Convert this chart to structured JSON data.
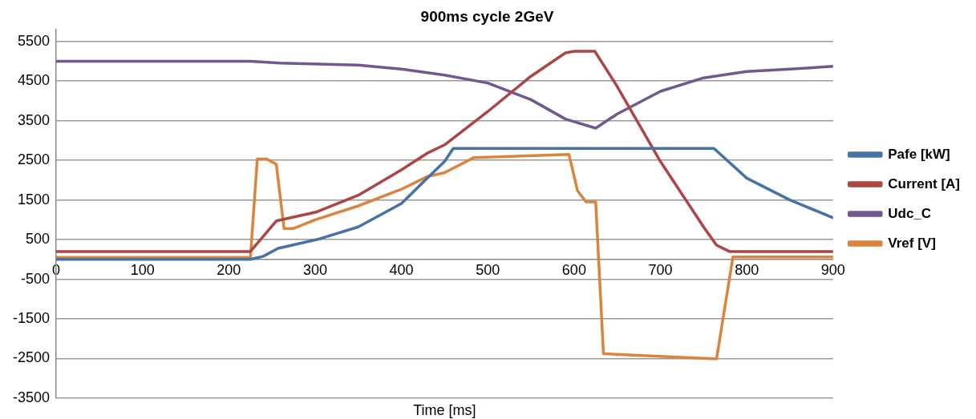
{
  "chart_data": {
    "type": "line",
    "title": "900ms cycle 2GeV",
    "xlabel": "Time [ms]",
    "xlim": [
      0,
      900
    ],
    "xticks": [
      0,
      100,
      200,
      300,
      400,
      500,
      600,
      700,
      800,
      900
    ],
    "ylim": [
      -3500,
      5800
    ],
    "yticks": [
      -3500,
      -2500,
      -1500,
      -500,
      500,
      1500,
      2500,
      3500,
      4500,
      5500
    ],
    "grid": "y",
    "legend": "right",
    "marker": "none",
    "line_style": "solid",
    "series": [
      {
        "name": "Pafe [kW]",
        "color": "#4572a7",
        "x": [
          0,
          225,
          240,
          257,
          302,
          350,
          400,
          430,
          450,
          460,
          762,
          800,
          850,
          900
        ],
        "values": [
          0,
          0,
          80,
          280,
          500,
          820,
          1410,
          2050,
          2470,
          2800,
          2800,
          2050,
          1500,
          1050
        ]
      },
      {
        "name": "Current [A]",
        "color": "#aa4643",
        "x": [
          0,
          225,
          255,
          302,
          350,
          400,
          430,
          450,
          500,
          550,
          590,
          600,
          624,
          650,
          700,
          750,
          765,
          780,
          900
        ],
        "values": [
          200,
          200,
          970,
          1200,
          1620,
          2260,
          2680,
          2890,
          3730,
          4620,
          5210,
          5250,
          5250,
          4360,
          2470,
          820,
          360,
          200,
          200
        ]
      },
      {
        "name": "Udc_C",
        "color": "#71588f",
        "x": [
          0,
          225,
          260,
          350,
          400,
          450,
          500,
          550,
          590,
          625,
          650,
          700,
          750,
          800,
          850,
          900
        ],
        "values": [
          5000,
          5000,
          4950,
          4900,
          4800,
          4650,
          4450,
          4030,
          3540,
          3310,
          3670,
          4240,
          4580,
          4740,
          4800,
          4870
        ]
      },
      {
        "name": "Vref [V]",
        "color": "#db843d",
        "x": [
          0,
          225,
          233,
          244,
          255,
          264,
          275,
          300,
          350,
          400,
          430,
          450,
          484,
          594,
          604,
          614,
          625,
          634,
          765,
          784,
          900
        ],
        "values": [
          50,
          50,
          2530,
          2530,
          2400,
          780,
          780,
          1000,
          1350,
          1770,
          2090,
          2190,
          2570,
          2650,
          1730,
          1450,
          1450,
          -2380,
          -2510,
          60,
          60
        ]
      }
    ]
  }
}
